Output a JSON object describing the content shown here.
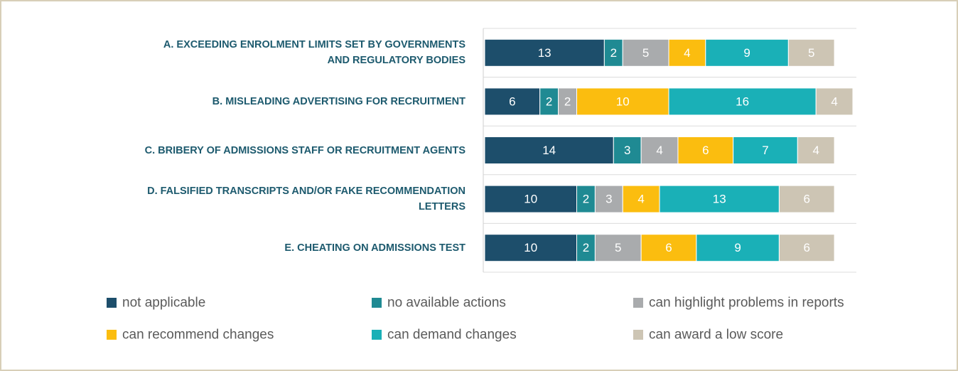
{
  "chart_data": {
    "type": "stacked-bar-horizontal",
    "categories": [
      "A. EXCEEDING ENROLMENT LIMITS SET BY GOVERNMENTS\nAND REGULATORY BODIES",
      "B. MISLEADING ADVERTISING FOR RECRUITMENT",
      "C. BRIBERY OF ADMISSIONS STAFF OR RECRUITMENT AGENTS",
      "D. FALSIFIED TRANSCRIPTS AND/OR FAKE RECOMMENDATION\nLETTERS",
      "E. CHEATING ON ADMISSIONS TEST"
    ],
    "series": [
      {
        "name": "not applicable",
        "color": "#1d4e6b",
        "values": [
          13,
          6,
          14,
          10,
          10
        ]
      },
      {
        "name": "no available actions",
        "color": "#1f8a93",
        "values": [
          2,
          2,
          3,
          2,
          2
        ]
      },
      {
        "name": "can highlight problems in reports",
        "color": "#a9abad",
        "values": [
          5,
          2,
          4,
          3,
          5
        ]
      },
      {
        "name": "can recommend changes",
        "color": "#fbbd0f",
        "values": [
          4,
          10,
          6,
          4,
          6
        ]
      },
      {
        "name": "can demand changes",
        "color": "#1ab0b7",
        "values": [
          9,
          16,
          7,
          13,
          9
        ]
      },
      {
        "name": "can award a low score",
        "color": "#cdc5b4",
        "values": [
          5,
          4,
          4,
          6,
          6
        ]
      }
    ],
    "xlim": [
      0,
      40
    ]
  }
}
